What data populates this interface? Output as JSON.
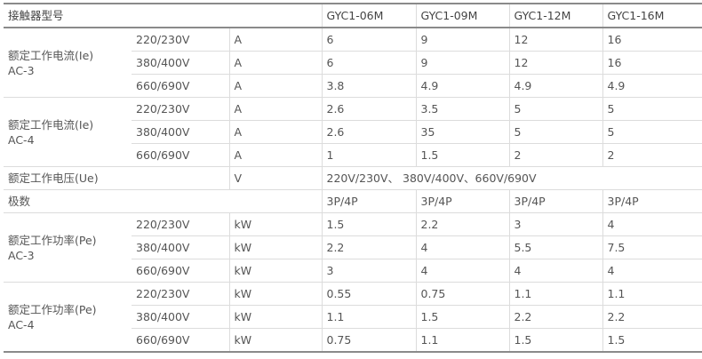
{
  "header": {
    "label": "接触器型号",
    "models": [
      "GYC1-06M",
      "GYC1-09M",
      "GYC1-12M",
      "GYC1-16M"
    ]
  },
  "groups": [
    {
      "label": "额定工作电流(Ie)",
      "sub": "AC-3",
      "unit": "A",
      "rows": [
        {
          "voltage": "220/230V",
          "values": [
            "6",
            "9",
            "12",
            "16"
          ]
        },
        {
          "voltage": "380/400V",
          "values": [
            "6",
            "9",
            "12",
            "16"
          ]
        },
        {
          "voltage": "660/690V",
          "values": [
            "3.8",
            "4.9",
            "4.9",
            "4.9"
          ]
        }
      ]
    },
    {
      "label": "额定工作电流(Ie)",
      "sub": "AC-4",
      "unit": "A",
      "rows": [
        {
          "voltage": "220/230V",
          "values": [
            "2.6",
            "3.5",
            "5",
            "5"
          ]
        },
        {
          "voltage": "380/400V",
          "values": [
            "2.6",
            "35",
            "5",
            "5"
          ]
        },
        {
          "voltage": "660/690V",
          "values": [
            "1",
            "1.5",
            "2",
            "2"
          ]
        }
      ]
    },
    {
      "single": true,
      "label": "额定工作电压(Ue)",
      "unit": "V",
      "merged": "220V/230V、 380V/400V、660V/690V"
    },
    {
      "poles": true,
      "label": "极数",
      "values": [
        "3P/4P",
        "3P/4P",
        "3P/4P",
        "3P/4P"
      ]
    },
    {
      "label": "额定工作功率(Pe)",
      "sub": "AC-3",
      "unit": "kW",
      "rows": [
        {
          "voltage": "220/230V",
          "values": [
            "1.5",
            "2.2",
            "3",
            "4"
          ]
        },
        {
          "voltage": "380/400V",
          "values": [
            "2.2",
            "4",
            "5.5",
            "7.5"
          ]
        },
        {
          "voltage": "660/690V",
          "values": [
            "3",
            "4",
            "4",
            "4"
          ]
        }
      ]
    },
    {
      "label": "额定工作功率(Pe)",
      "sub": "AC-4",
      "unit": "kW",
      "rows": [
        {
          "voltage": "220/230V",
          "values": [
            "0.55",
            "0.75",
            "1.1",
            "1.1"
          ]
        },
        {
          "voltage": "380/400V",
          "values": [
            "1.1",
            "1.5",
            "2.2",
            "2.2"
          ]
        },
        {
          "voltage": "660/690V",
          "values": [
            "0.75",
            "1.1",
            "1.5",
            "1.5"
          ]
        }
      ]
    }
  ]
}
